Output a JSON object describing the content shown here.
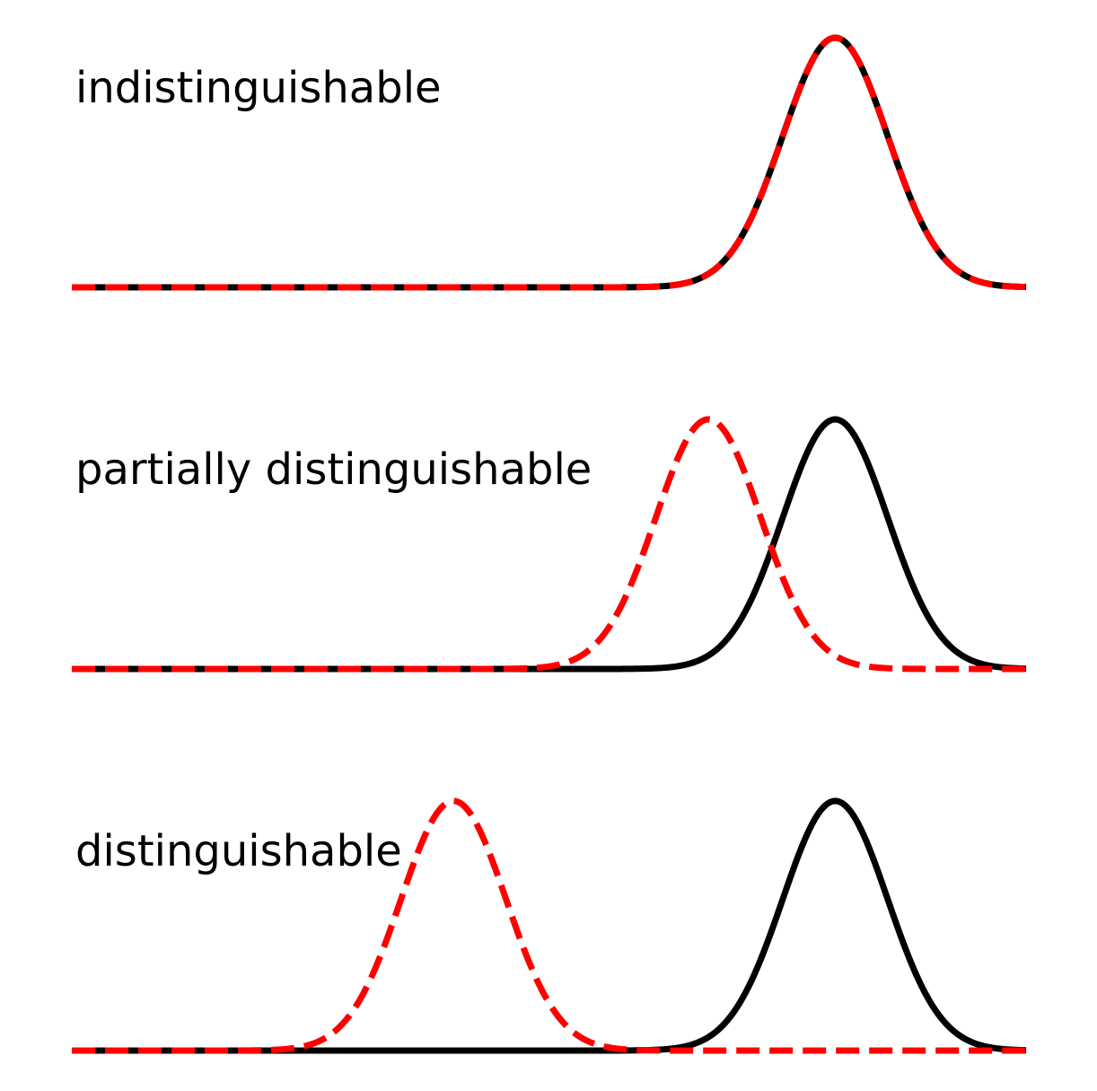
{
  "chart_data": [
    {
      "type": "line",
      "title": "",
      "annotation": "indistinguishable",
      "xlabel": "",
      "ylabel": "",
      "xlim": [
        0,
        10
      ],
      "ylim": [
        0,
        1
      ],
      "grid": false,
      "axes_visible": false,
      "series": [
        {
          "mean": 8,
          "sd": 0.55,
          "peak": 1.0,
          "color": "#000000",
          "style": "solid"
        },
        {
          "mean": 8,
          "sd": 0.55,
          "peak": 1.0,
          "color": "#ff0000",
          "style": "dashed"
        }
      ]
    },
    {
      "type": "line",
      "title": "",
      "annotation": "partially distinguishable",
      "xlabel": "",
      "ylabel": "",
      "xlim": [
        0,
        10
      ],
      "ylim": [
        0,
        1
      ],
      "grid": false,
      "axes_visible": false,
      "series": [
        {
          "mean": 8,
          "sd": 0.55,
          "peak": 1.0,
          "color": "#000000",
          "style": "solid"
        },
        {
          "mean": 6.67,
          "sd": 0.55,
          "peak": 1.0,
          "color": "#ff0000",
          "style": "dashed"
        }
      ]
    },
    {
      "type": "line",
      "title": "",
      "annotation": "distinguishable",
      "xlabel": "",
      "ylabel": "",
      "xlim": [
        0,
        10
      ],
      "ylim": [
        0,
        1
      ],
      "grid": false,
      "axes_visible": false,
      "series": [
        {
          "mean": 8,
          "sd": 0.55,
          "peak": 1.0,
          "color": "#000000",
          "style": "solid"
        },
        {
          "mean": 4.0,
          "sd": 0.55,
          "peak": 1.0,
          "color": "#ff0000",
          "style": "dashed"
        }
      ]
    }
  ]
}
